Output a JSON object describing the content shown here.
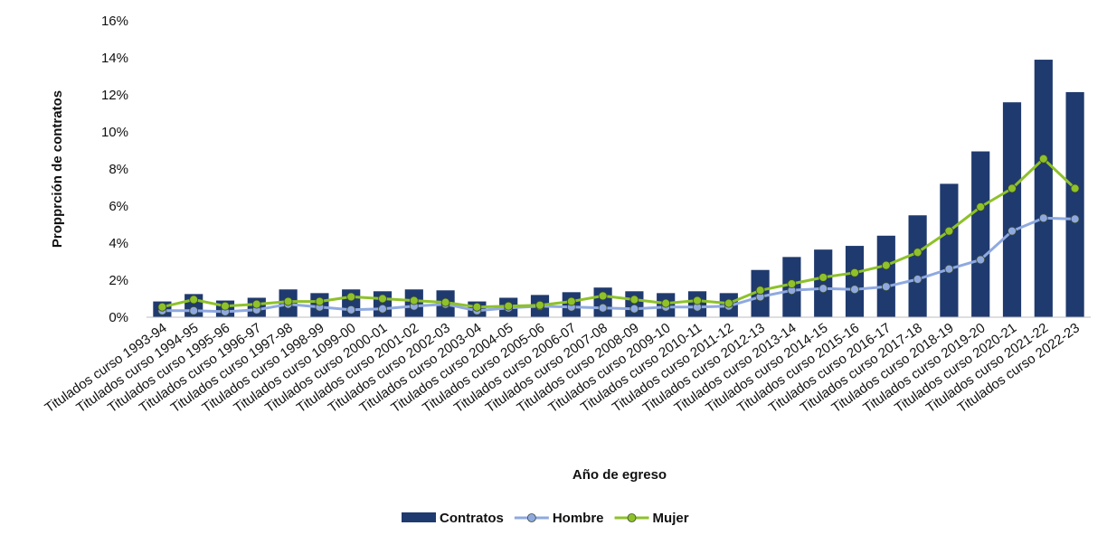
{
  "chart_data": {
    "type": "bar",
    "title": "",
    "xlabel": "Año de egreso",
    "ylabel": "Propprción de contratos",
    "ylim": [
      0,
      16
    ],
    "y_ticks": [
      "0%",
      "2%",
      "4%",
      "6%",
      "8%",
      "10%",
      "12%",
      "14%",
      "16%"
    ],
    "grid": false,
    "legend_position": "bottom",
    "categories": [
      "Titulados curso 1993-94",
      "Titulados curso 1994-95",
      "Titulados curso 1995-96",
      "Titulados curso 1996-97",
      "Titulados curso 1997-98",
      "Titulados curso 1998-99",
      "Titulados curso 1099-00",
      "Titulados curso 2000-01",
      "Titulados curso 2001-02",
      "Titulados curso 2002-03",
      "Titulados curso 2003-04",
      "Titulados curso 2004-05",
      "Titulados curso 2005-06",
      "Titulados curso 2006-07",
      "Titulados curso 2007-08",
      "Titulados curso 2008-09",
      "Titulados curso 2009-10",
      "Titulados curso 2010-11",
      "Titulados curso 2011-12",
      "Titulados curso 2012-13",
      "Titulados curso 2013-14",
      "Titulados curso 2014-15",
      "Titulados curso 2015-16",
      "Titulados curso 2016-17",
      "Titulados curso 2017-18",
      "Titulados curso 2018-19",
      "Titulados curso 2019-20",
      "Titulados curso 2020-21",
      "Titulados curso 2021-22",
      "Titulados curso 2022-23"
    ],
    "series": [
      {
        "name": "Contratos",
        "kind": "bar",
        "color": "#1f3a6e",
        "values": [
          0.85,
          1.25,
          0.9,
          1.05,
          1.5,
          1.3,
          1.5,
          1.4,
          1.5,
          1.45,
          0.85,
          1.05,
          1.2,
          1.35,
          1.6,
          1.4,
          1.3,
          1.4,
          1.3,
          2.55,
          3.25,
          3.65,
          3.85,
          4.4,
          5.5,
          7.2,
          8.95,
          11.6,
          13.9,
          12.15
        ]
      },
      {
        "name": "Hombre",
        "kind": "line",
        "color": "#8fa9e0",
        "values": [
          0.35,
          0.35,
          0.3,
          0.4,
          0.7,
          0.55,
          0.4,
          0.45,
          0.6,
          0.7,
          0.35,
          0.5,
          0.6,
          0.55,
          0.5,
          0.45,
          0.55,
          0.55,
          0.6,
          1.1,
          1.45,
          1.55,
          1.5,
          1.65,
          2.05,
          2.6,
          3.1,
          4.65,
          5.35,
          5.3
        ]
      },
      {
        "name": "Mujer",
        "kind": "line",
        "color": "#8ec12a",
        "values": [
          0.55,
          0.95,
          0.6,
          0.7,
          0.85,
          0.85,
          1.1,
          1.0,
          0.9,
          0.8,
          0.55,
          0.6,
          0.65,
          0.85,
          1.15,
          0.95,
          0.75,
          0.9,
          0.75,
          1.45,
          1.8,
          2.15,
          2.4,
          2.8,
          3.5,
          4.65,
          5.95,
          6.95,
          8.55,
          6.95
        ]
      }
    ]
  }
}
